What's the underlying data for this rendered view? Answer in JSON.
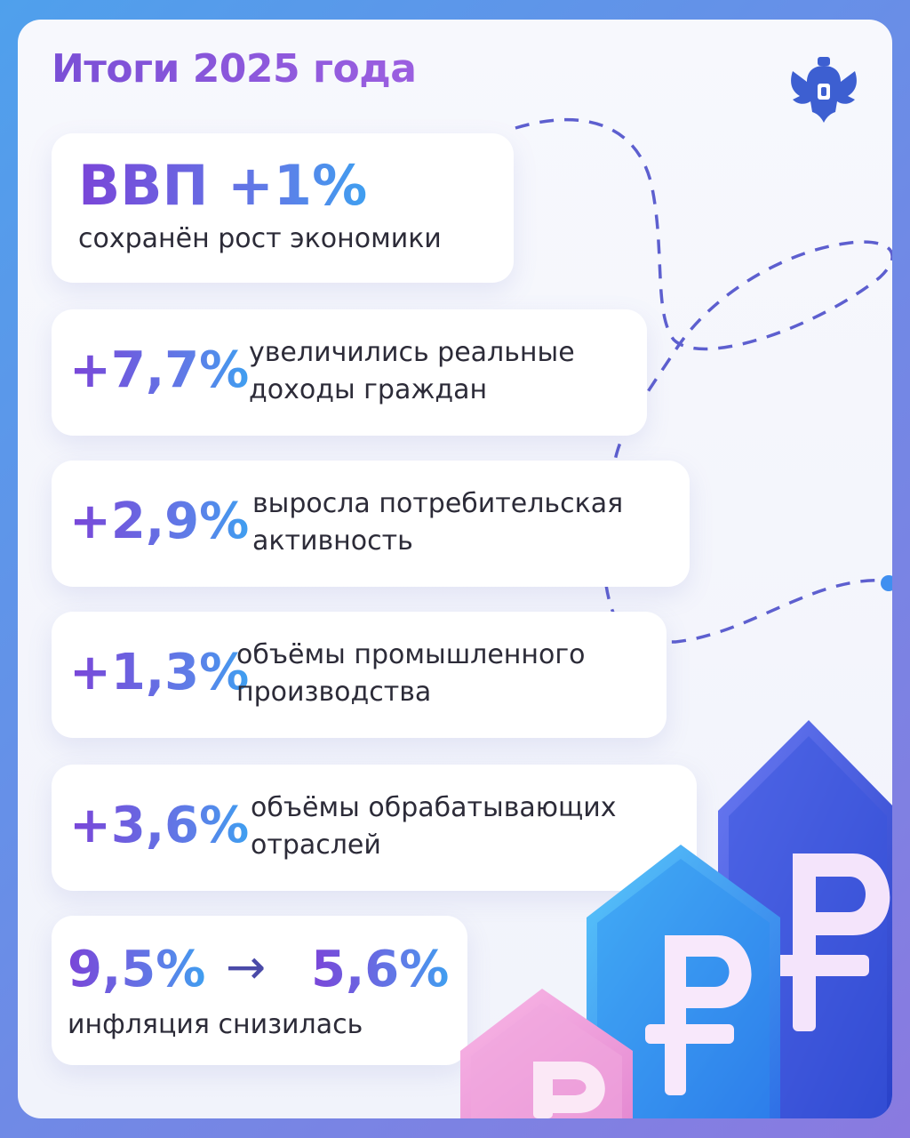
{
  "header": {
    "title": "Итоги 2025 года",
    "emblem_icon": "russian-coat-of-arms-icon"
  },
  "stats": [
    {
      "value": "ВВП +1%",
      "text": "сохранён рост экономики"
    },
    {
      "value": "+7,7%",
      "line1": "увеличились реальные",
      "line2": "доходы граждан"
    },
    {
      "value": "+2,9%",
      "line1": "выросла потребительская",
      "line2": "активность"
    },
    {
      "value": "+1,3%",
      "line1": "объёмы промышленного",
      "line2": "производства"
    },
    {
      "value": "+3,6%",
      "line1": "объёмы обрабатывающих",
      "line2": "отраслей"
    }
  ],
  "inflation": {
    "from": "9,5%",
    "arrow": "→",
    "to": "5,6%",
    "text": "инфляция снизилась"
  },
  "decor": {
    "pillar_icon": "ruble-sign-icon",
    "colors": {
      "accent": "#7a45d8",
      "blue": "#3f9ff0",
      "dash": "#5558c8"
    }
  }
}
